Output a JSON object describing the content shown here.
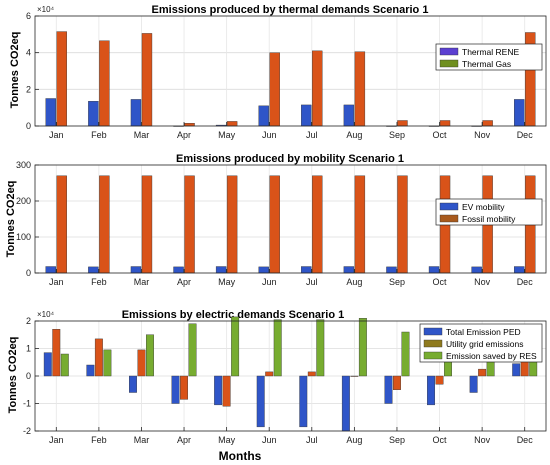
{
  "chart_data": [
    {
      "type": "bar",
      "title": "Emissions produced by thermal demands Scenario 1",
      "ylabel": "Tonnes CO2eq",
      "exponent_label": "×10⁴",
      "scale": 10000,
      "categories": [
        "Jan",
        "Feb",
        "Mar",
        "Apr",
        "May",
        "Jun",
        "Jul",
        "Aug",
        "Sep",
        "Oct",
        "Nov",
        "Dec"
      ],
      "ylim": [
        0,
        60000
      ],
      "yticks": [
        0,
        20000,
        40000,
        60000
      ],
      "yticklabels": [
        "0",
        "2",
        "4",
        "6"
      ],
      "grid": true,
      "legend_position": "top-right",
      "series": [
        {
          "name": "Thermal RENE",
          "color": "#2f55c8",
          "values": [
            15000,
            13500,
            14500,
            0,
            500,
            11000,
            11500,
            11500,
            0,
            0,
            0,
            14500
          ]
        },
        {
          "name": "Thermal Gas",
          "color": "#d95319",
          "values": [
            51500,
            46500,
            50500,
            1500,
            2500,
            40000,
            41000,
            40500,
            3000,
            3000,
            3000,
            51000
          ]
        }
      ],
      "legend_colors": [
        "#5b3fd1",
        "#6f8f1f"
      ]
    },
    {
      "type": "bar",
      "title": "Emissions produced by mobility Scenario 1",
      "ylabel": "Tonnes CO2eq",
      "categories": [
        "Jan",
        "Feb",
        "Mar",
        "Apr",
        "May",
        "Jun",
        "Jul",
        "Aug",
        "Sep",
        "Oct",
        "Nov",
        "Dec"
      ],
      "ylim": [
        0,
        300
      ],
      "yticks": [
        0,
        100,
        200,
        300
      ],
      "yticklabels": [
        "0",
        "100",
        "200",
        "300"
      ],
      "grid": true,
      "legend_position": "top-right",
      "series": [
        {
          "name": "EV mobility",
          "color": "#2f55c8",
          "values": [
            18,
            17,
            18,
            17,
            18,
            17,
            18,
            18,
            17,
            18,
            17,
            18
          ]
        },
        {
          "name": "Fossil mobility",
          "color": "#d95319",
          "values": [
            270,
            270,
            270,
            270,
            270,
            270,
            270,
            270,
            270,
            270,
            270,
            270
          ]
        }
      ],
      "legend_colors": [
        "#2f55c8",
        "#a85a1d"
      ]
    },
    {
      "type": "bar",
      "title": "Emissions by electric demands Scenario 1",
      "ylabel": "Tonnes CO2eq",
      "xlabel": "Months",
      "exponent_label": "×10⁴",
      "scale": 10000,
      "categories": [
        "Jan",
        "Feb",
        "Mar",
        "Apr",
        "May",
        "Jun",
        "Jul",
        "Aug",
        "Sep",
        "Oct",
        "Nov",
        "Dec"
      ],
      "ylim": [
        -20000,
        20000
      ],
      "yticks": [
        -20000,
        -10000,
        0,
        10000,
        20000
      ],
      "yticklabels": [
        "-2",
        "-1",
        "0",
        "1",
        "2"
      ],
      "grid": true,
      "legend_position": "top-right",
      "series": [
        {
          "name": "Total Emission PED",
          "color": "#2f55c8",
          "values": [
            8500,
            4000,
            -6000,
            -10000,
            -10500,
            -18500,
            -18500,
            -20000,
            -10000,
            -10500,
            -6000,
            4500
          ]
        },
        {
          "name": "Utility grid emissions",
          "color": "#d95319",
          "values": [
            17000,
            13500,
            9500,
            -8500,
            -11000,
            1500,
            1500,
            0,
            -5000,
            -3000,
            2500,
            14500
          ]
        },
        {
          "name": "Emission saved by RES",
          "color": "#77ac30",
          "values": [
            8000,
            9500,
            15000,
            19000,
            21500,
            20500,
            20500,
            21000,
            16000,
            14500,
            8500,
            10500
          ]
        }
      ],
      "legend_colors": [
        "#2f55c8",
        "#8f7a1e",
        "#77ac30"
      ]
    }
  ]
}
